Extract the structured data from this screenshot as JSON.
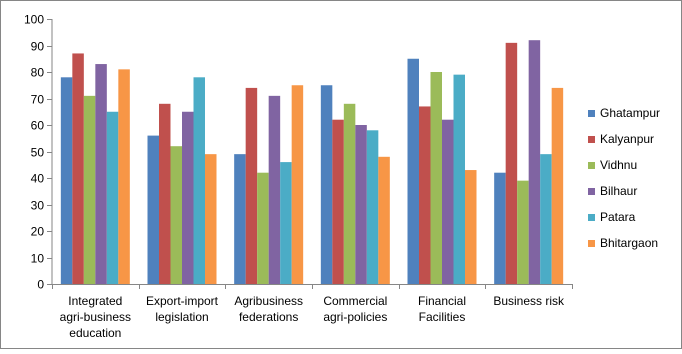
{
  "chart_data": {
    "type": "bar",
    "categories": [
      [
        "Integrated",
        "agri-business",
        "education"
      ],
      [
        "Export-import",
        "legislation"
      ],
      [
        "Agribusiness",
        "federations"
      ],
      [
        "Commercial",
        "agri-policies"
      ],
      [
        "Financial",
        "Facilities"
      ],
      [
        "Business risk"
      ]
    ],
    "series": [
      {
        "name": "Ghatampur",
        "color": "#4F81BD",
        "values": [
          78,
          56,
          49,
          75,
          85,
          42
        ]
      },
      {
        "name": "Kalyanpur",
        "color": "#C0504D",
        "values": [
          87,
          68,
          74,
          62,
          67,
          91
        ]
      },
      {
        "name": "Vidhnu",
        "color": "#9BBB59",
        "values": [
          71,
          52,
          42,
          68,
          80,
          39
        ]
      },
      {
        "name": "Bilhaur",
        "color": "#8064A2",
        "values": [
          83,
          65,
          71,
          60,
          62,
          92
        ]
      },
      {
        "name": "Patara",
        "color": "#4BACC6",
        "values": [
          65,
          78,
          46,
          58,
          79,
          49
        ]
      },
      {
        "name": "Bhitargaon",
        "color": "#F79646",
        "values": [
          81,
          49,
          75,
          48,
          43,
          74
        ]
      }
    ],
    "ylim": [
      0,
      100
    ],
    "yticks": [
      0,
      10,
      20,
      30,
      40,
      50,
      60,
      70,
      80,
      90,
      100
    ],
    "grid": false,
    "legend_position": "right",
    "title": "",
    "xlabel": "",
    "ylabel": ""
  }
}
